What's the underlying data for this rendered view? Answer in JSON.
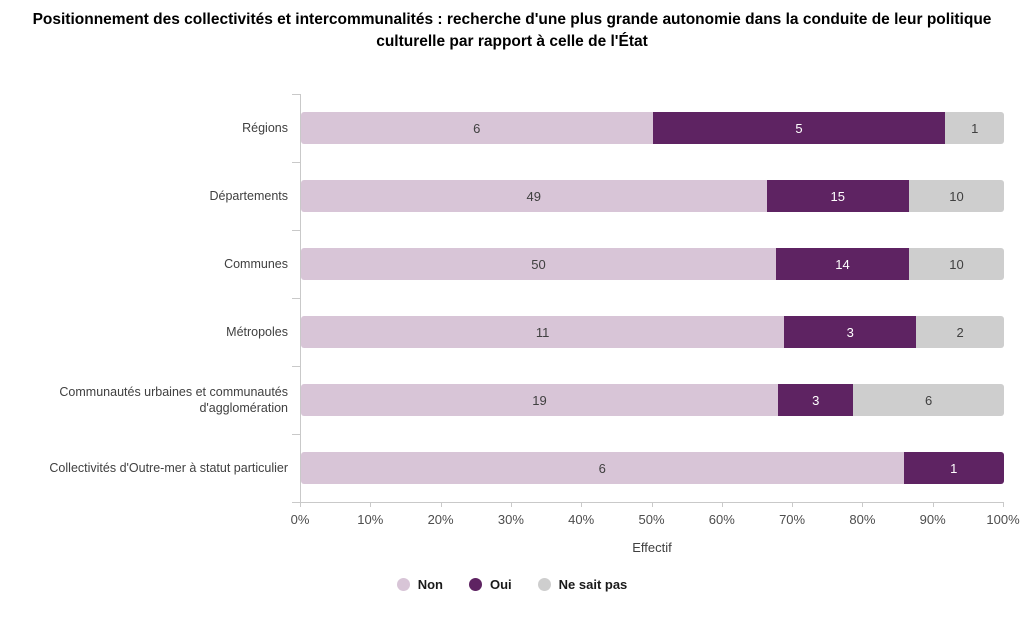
{
  "title": "Positionnement des collectivités et intercommunalités : recherche d'une plus grande autonomie dans la conduite de leur politique culturelle par rapport à celle de l'État",
  "chart_data": {
    "type": "bar",
    "orientation": "horizontal",
    "stacked": true,
    "normalized_percent": true,
    "categories": [
      "Régions",
      "Départements",
      "Communes",
      "Métropoles",
      "Communautés urbaines et communautés d'agglomération",
      "Collectivités d'Outre-mer à statut particulier"
    ],
    "series": [
      {
        "name": "Non",
        "color": "#d8c5d7",
        "label_color": "#404040",
        "values": [
          6,
          49,
          50,
          11,
          19,
          6
        ]
      },
      {
        "name": "Oui",
        "color": "#5e2362",
        "label_color": "#ffffff",
        "values": [
          5,
          15,
          14,
          3,
          3,
          1
        ]
      },
      {
        "name": "Ne sait pas",
        "color": "#cecece",
        "label_color": "#404040",
        "values": [
          1,
          10,
          10,
          2,
          6,
          0
        ]
      }
    ],
    "xlabel": "Effectif",
    "x_ticks": [
      "0%",
      "10%",
      "20%",
      "30%",
      "40%",
      "50%",
      "60%",
      "70%",
      "80%",
      "90%",
      "100%"
    ],
    "xlim_percent": [
      0,
      100
    ],
    "grid": "off",
    "legend_position": "bottom",
    "axis_color": "#c9c9c9"
  }
}
